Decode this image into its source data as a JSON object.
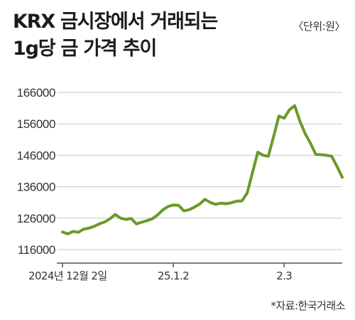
{
  "header": {
    "title_line1": "KRX 금시장에서 거래되는",
    "title_line2": "1g당 금 가격 추이",
    "unit": "〈단위:원〉"
  },
  "footer": {
    "source": "*자료:한국거래소"
  },
  "colors": {
    "line": "#6a9a2a",
    "grid": "#c8c8c8",
    "axis": "#555555"
  },
  "chart_data": {
    "type": "line",
    "title": "KRX 금시장에서 거래되는 1g당 금 가격 추이",
    "unit": "원",
    "yticks": [
      116000,
      126000,
      136000,
      146000,
      156000,
      166000
    ],
    "ylim": [
      114000,
      167000
    ],
    "xticks": [
      {
        "label": "2024년 12월 2일",
        "index": 0
      },
      {
        "label": "25.1.2",
        "index": 21
      },
      {
        "label": "2.3",
        "index": 42
      }
    ],
    "grid": true,
    "values": [
      121600,
      121000,
      121800,
      121500,
      122500,
      122800,
      123400,
      124200,
      124800,
      125800,
      127200,
      126000,
      125600,
      125900,
      124200,
      124700,
      125200,
      125800,
      127000,
      128600,
      129700,
      130200,
      130100,
      128300,
      128700,
      129500,
      130500,
      132000,
      131000,
      130400,
      130800,
      130600,
      130900,
      131400,
      131500,
      134000,
      140500,
      147000,
      146000,
      145700,
      152000,
      158500,
      157800,
      160500,
      161800,
      156800,
      152800,
      149800,
      146300,
      146200,
      146000,
      145700,
      142500,
      139000
    ]
  }
}
